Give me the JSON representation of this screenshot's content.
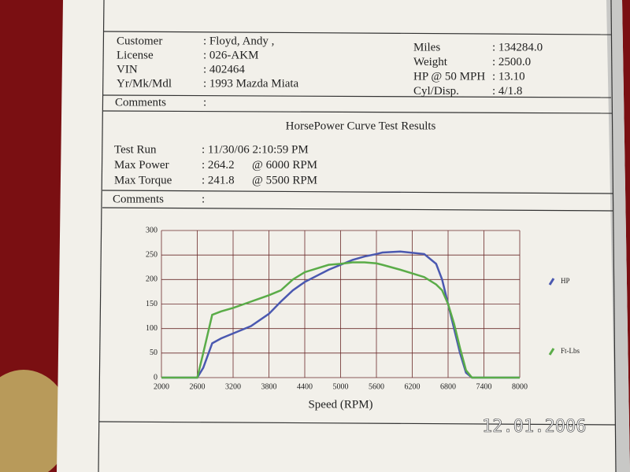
{
  "vehicle": {
    "left": [
      {
        "label": "Customer",
        "value": ": Floyd, Andy ,"
      },
      {
        "label": "License",
        "value": ": 026-AKM"
      },
      {
        "label": "VIN",
        "value": ": 402464"
      },
      {
        "label": "Yr/Mk/Mdl",
        "value": ": 1993 Mazda Miata"
      }
    ],
    "right": [
      {
        "label": "Miles",
        "value": ": 134284.0"
      },
      {
        "label": "Weight",
        "value": ": 2500.0"
      },
      {
        "label": "HP @ 50 MPH",
        "value": ": 13.10"
      },
      {
        "label": "Cyl/Disp.",
        "value": ": 4/1.8"
      }
    ],
    "comments": {
      "label": "Comments",
      "value": ":"
    }
  },
  "results": {
    "title": "HorsePower Curve Test Results",
    "rows": [
      {
        "label": "Test Run",
        "value": ": 11/30/06 2:10:59 PM"
      },
      {
        "label": "Max Power",
        "value": ": 264.2",
        "at": "@ 6000  RPM"
      },
      {
        "label": "Max Torque",
        "value": ": 241.8",
        "at": "@ 5500  RPM"
      }
    ],
    "comments": {
      "label": "Comments",
      "value": ":"
    }
  },
  "chart_data": {
    "type": "line",
    "x_label": "Speed (RPM)",
    "x": [
      2000,
      2600,
      2700,
      2850,
      3000,
      3200,
      3500,
      3800,
      4000,
      4200,
      4400,
      4800,
      5000,
      5200,
      5400,
      5600,
      5700,
      6000,
      6400,
      6600,
      6700,
      6800,
      6900,
      7000,
      7100,
      7200,
      8000
    ],
    "series": [
      {
        "name": "HP",
        "color": "#4a58b0",
        "values": [
          0,
          0,
          20,
          70,
          80,
          90,
          105,
          130,
          155,
          178,
          195,
          220,
          230,
          240,
          247,
          252,
          255,
          257,
          252,
          232,
          200,
          150,
          100,
          50,
          10,
          0,
          0
        ]
      },
      {
        "name": "Ft-Lbs",
        "color": "#5aac48",
        "values": [
          0,
          0,
          50,
          128,
          135,
          142,
          155,
          168,
          178,
          200,
          215,
          230,
          232,
          235,
          235,
          233,
          230,
          220,
          205,
          190,
          178,
          150,
          110,
          60,
          15,
          0,
          0
        ]
      }
    ],
    "xlim": [
      2000,
      8000
    ],
    "ylim": [
      0,
      300
    ],
    "xticks": [
      2000,
      2600,
      3200,
      3800,
      4400,
      5000,
      5600,
      6200,
      6800,
      7400,
      8000
    ],
    "yticks": [
      0,
      50,
      100,
      150,
      200,
      250,
      300
    ],
    "grid": true
  },
  "date_stamp": "12.01.2006"
}
